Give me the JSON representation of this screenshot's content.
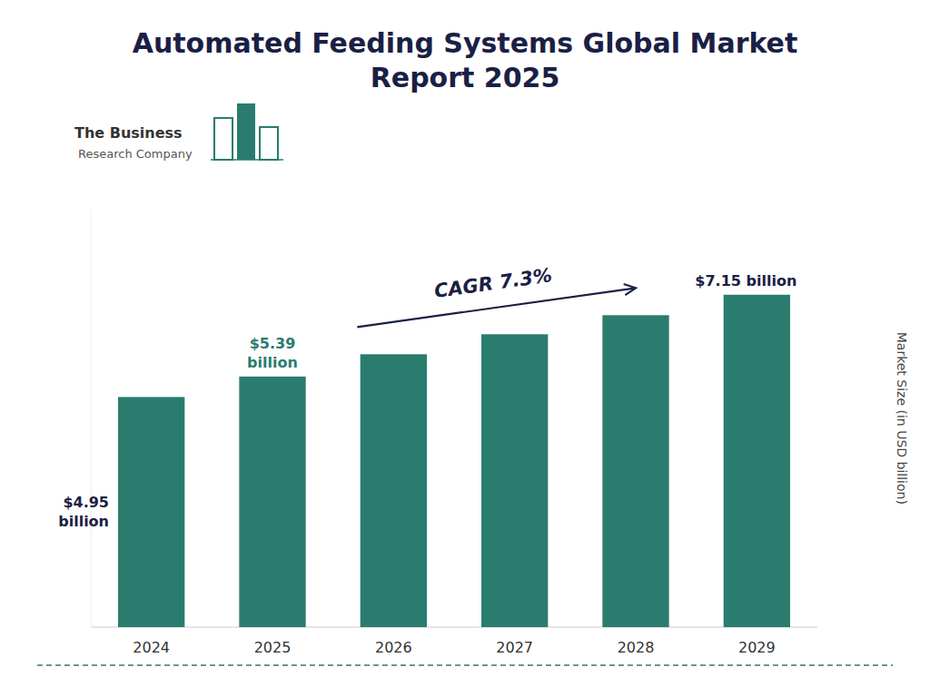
{
  "chart_data": {
    "type": "bar",
    "title": "Automated Feeding Systems Global Market\nReport 2025",
    "categories": [
      "2024",
      "2025",
      "2026",
      "2027",
      "2028",
      "2029"
    ],
    "values": [
      4.95,
      5.39,
      5.87,
      6.3,
      6.71,
      7.15
    ],
    "color": "#2a7c6f",
    "y_label": "Market Size (in USD billion)",
    "ylim": [
      0,
      9.0
    ],
    "tick_labels": "x",
    "grid": false,
    "annotations": [
      {
        "text": "$4.95\nbillion",
        "category": "2024",
        "color": "#1a2044"
      },
      {
        "text": "$5.39\nbillion",
        "category": "2025",
        "color": "#2a7c6f"
      },
      {
        "text": "$7.15 billion",
        "category": "2029",
        "color": "#1a2044"
      },
      {
        "text": "CAGR 7.3%",
        "color": "#1a2044"
      }
    ],
    "logo": [
      "The Business",
      "Research Company"
    ]
  }
}
